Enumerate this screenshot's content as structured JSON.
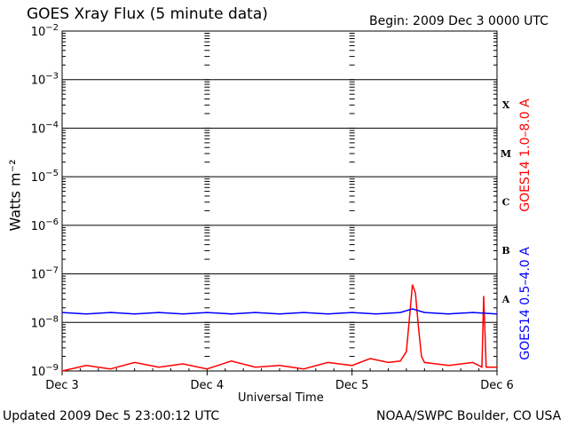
{
  "title": "GOES Xray Flux (5 minute data)",
  "begin_label": "Begin:  2009 Dec 3 0000 UTC",
  "updated_label": "Updated 2009 Dec  5 23:00:12 UTC",
  "credit_label": "NOAA/SWPC Boulder, CO USA",
  "chart_data": {
    "type": "line",
    "xlabel": "Universal Time",
    "ylabel": "Watts m⁻²",
    "x_ticks": [
      "Dec 3",
      "Dec 4",
      "Dec 5",
      "Dec 6"
    ],
    "xlim": [
      0,
      72
    ],
    "x_unit": "hours",
    "y_scale": "log",
    "ylim": [
      1e-09,
      0.01
    ],
    "y_tick_exponents": [
      -9,
      -8,
      -7,
      -6,
      -5,
      -4,
      -3,
      -2
    ],
    "flare_classes": [
      {
        "label": "A",
        "level": 1e-08
      },
      {
        "label": "B",
        "level": 1e-07
      },
      {
        "label": "C",
        "level": 1e-06
      },
      {
        "label": "M",
        "level": 1e-05
      },
      {
        "label": "X",
        "level": 0.0001
      }
    ],
    "grid": true,
    "series": [
      {
        "name": "GOES14 1.0–8.0 A",
        "color": "#ff0000",
        "points": [
          [
            0,
            1e-09
          ],
          [
            4,
            1.3e-09
          ],
          [
            8,
            1.1e-09
          ],
          [
            12,
            1.5e-09
          ],
          [
            16,
            1.2e-09
          ],
          [
            20,
            1.4e-09
          ],
          [
            24,
            1.1e-09
          ],
          [
            28,
            1.6e-09
          ],
          [
            32,
            1.2e-09
          ],
          [
            36,
            1.3e-09
          ],
          [
            40,
            1.1e-09
          ],
          [
            44,
            1.5e-09
          ],
          [
            48,
            1.3e-09
          ],
          [
            51,
            1.8e-09
          ],
          [
            54,
            1.5e-09
          ],
          [
            56,
            1.6e-09
          ],
          [
            57,
            2.5e-09
          ],
          [
            57.5,
            1.2e-08
          ],
          [
            58,
            6e-08
          ],
          [
            58.5,
            4e-08
          ],
          [
            59,
            8e-09
          ],
          [
            59.5,
            2e-09
          ],
          [
            60,
            1.5e-09
          ],
          [
            64,
            1.3e-09
          ],
          [
            68,
            1.5e-09
          ],
          [
            69.5,
            1.2e-09
          ],
          [
            69.8,
            3.5e-08
          ],
          [
            70.2,
            1.2e-09
          ],
          [
            72,
            1.2e-09
          ]
        ]
      },
      {
        "name": "GOES14 0.5–4.0 A",
        "color": "#0000ff",
        "points": [
          [
            0,
            1.6e-08
          ],
          [
            4,
            1.5e-08
          ],
          [
            8,
            1.6e-08
          ],
          [
            12,
            1.5e-08
          ],
          [
            16,
            1.6e-08
          ],
          [
            20,
            1.5e-08
          ],
          [
            24,
            1.6e-08
          ],
          [
            28,
            1.5e-08
          ],
          [
            32,
            1.6e-08
          ],
          [
            36,
            1.5e-08
          ],
          [
            40,
            1.6e-08
          ],
          [
            44,
            1.5e-08
          ],
          [
            48,
            1.6e-08
          ],
          [
            52,
            1.5e-08
          ],
          [
            56,
            1.6e-08
          ],
          [
            58,
            1.9e-08
          ],
          [
            60,
            1.6e-08
          ],
          [
            64,
            1.5e-08
          ],
          [
            68,
            1.6e-08
          ],
          [
            72,
            1.5e-08
          ]
        ]
      }
    ]
  }
}
